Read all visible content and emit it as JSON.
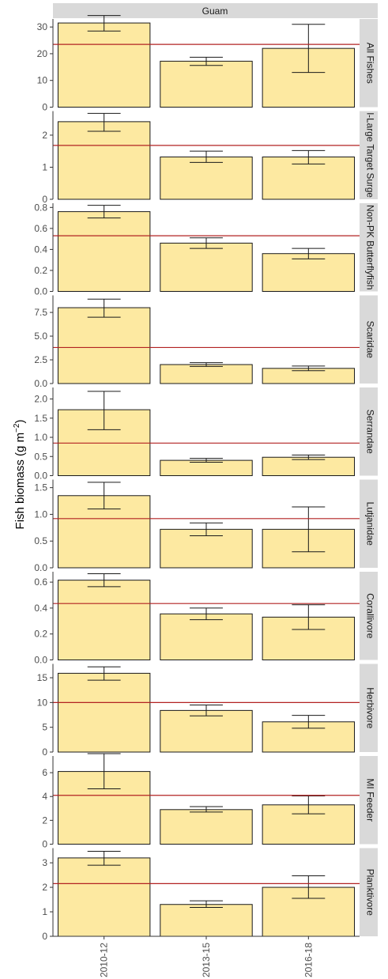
{
  "chart_data": {
    "type": "bar",
    "facet_label": "Guam",
    "ylabel": "Fish biomass (g m",
    "ylabel_sup": "−2",
    "ylabel_close": ")",
    "categories": [
      "2010-12",
      "2013-15",
      "2016-18"
    ],
    "colors": {
      "bar_fill": "#FDE9A1",
      "bar_stroke": "#1a1a1a",
      "mean_line": "#B22222",
      "strip_bg": "#D9D9D9",
      "error_bar": "#1a1a1a"
    },
    "grid": false,
    "panels": [
      {
        "label": "All Fishes",
        "ylim": [
          0,
          33
        ],
        "ticks": [
          0,
          10,
          20,
          30
        ],
        "tick_labels": [
          "0",
          "10",
          "20",
          "30"
        ],
        "values": [
          31.5,
          17.2,
          22.0
        ],
        "err_low": [
          28.5,
          15.6,
          13.0
        ],
        "err_high": [
          34.3,
          18.7,
          31.0
        ],
        "mean_line": 23.5
      },
      {
        "label": "l-Large Target Surge",
        "ylim": [
          0,
          2.75
        ],
        "ticks": [
          0,
          1,
          2
        ],
        "tick_labels": [
          "0",
          "1",
          "2"
        ],
        "values": [
          2.42,
          1.32,
          1.32
        ],
        "err_low": [
          2.12,
          1.15,
          1.1
        ],
        "err_high": [
          2.68,
          1.5,
          1.52
        ],
        "mean_line": 1.68
      },
      {
        "label": "Non-PK Butterflyfish",
        "ylim": [
          0,
          0.84
        ],
        "ticks": [
          0,
          0.2,
          0.4,
          0.6,
          0.8
        ],
        "tick_labels": [
          "0.0",
          "0.2",
          "0.4",
          "0.6",
          "0.8"
        ],
        "values": [
          0.76,
          0.46,
          0.36
        ],
        "err_low": [
          0.7,
          0.41,
          0.31
        ],
        "err_high": [
          0.82,
          0.51,
          0.41
        ],
        "mean_line": 0.53
      },
      {
        "label": "Scaridae",
        "ylim": [
          0,
          9.3
        ],
        "ticks": [
          0,
          2.5,
          5,
          7.5
        ],
        "tick_labels": [
          "0.0",
          "2.5",
          "5.0",
          "7.5"
        ],
        "values": [
          8.0,
          2.0,
          1.6
        ],
        "err_low": [
          7.0,
          1.8,
          1.35
        ],
        "err_high": [
          8.9,
          2.2,
          1.85
        ],
        "mean_line": 3.8
      },
      {
        "label": "Serrandae",
        "ylim": [
          0,
          2.3
        ],
        "ticks": [
          0,
          0.5,
          1,
          1.5,
          2
        ],
        "tick_labels": [
          "0.0",
          "0.5",
          "1.0",
          "1.5",
          "2.0"
        ],
        "values": [
          1.72,
          0.4,
          0.48
        ],
        "err_low": [
          1.2,
          0.35,
          0.42
        ],
        "err_high": [
          2.2,
          0.45,
          0.54
        ],
        "mean_line": 0.85
      },
      {
        "label": "Lutjanidae",
        "ylim": [
          0,
          1.65
        ],
        "ticks": [
          0,
          0.5,
          1,
          1.5
        ],
        "tick_labels": [
          "0.0",
          "0.5",
          "1.0",
          "1.5"
        ],
        "values": [
          1.35,
          0.72,
          0.72
        ],
        "err_low": [
          1.1,
          0.6,
          0.3
        ],
        "err_high": [
          1.6,
          0.84,
          1.14
        ],
        "mean_line": 0.92
      },
      {
        "label": "Corallivore",
        "ylim": [
          0,
          0.68
        ],
        "ticks": [
          0,
          0.2,
          0.4,
          0.6
        ],
        "tick_labels": [
          "0.0",
          "0.2",
          "0.4",
          "0.6"
        ],
        "values": [
          0.615,
          0.355,
          0.33
        ],
        "err_low": [
          0.565,
          0.31,
          0.235
        ],
        "err_high": [
          0.665,
          0.4,
          0.425
        ],
        "mean_line": 0.435
      },
      {
        "label": "Herbivore",
        "ylim": [
          0,
          17.8
        ],
        "ticks": [
          0,
          5,
          10,
          15
        ],
        "tick_labels": [
          "0",
          "5",
          "10",
          "15"
        ],
        "values": [
          15.9,
          8.4,
          6.1
        ],
        "err_low": [
          14.5,
          7.3,
          4.8
        ],
        "err_high": [
          17.2,
          9.5,
          7.4
        ],
        "mean_line": 10.0
      },
      {
        "label": "MI Feeder",
        "ylim": [
          0,
          7.4
        ],
        "ticks": [
          0,
          2,
          4,
          6
        ],
        "tick_labels": [
          "0",
          "2",
          "4",
          "6"
        ],
        "values": [
          6.1,
          2.9,
          3.3
        ],
        "err_low": [
          4.65,
          2.7,
          2.55
        ],
        "err_high": [
          7.6,
          3.15,
          4.05
        ],
        "mean_line": 4.1
      },
      {
        "label": "Planktivore",
        "ylim": [
          0,
          3.6
        ],
        "ticks": [
          0,
          1,
          2,
          3
        ],
        "tick_labels": [
          "0",
          "1",
          "2",
          "3"
        ],
        "values": [
          3.2,
          1.3,
          2.0
        ],
        "err_low": [
          2.9,
          1.18,
          1.55
        ],
        "err_high": [
          3.47,
          1.45,
          2.47
        ],
        "mean_line": 2.15
      }
    ]
  }
}
